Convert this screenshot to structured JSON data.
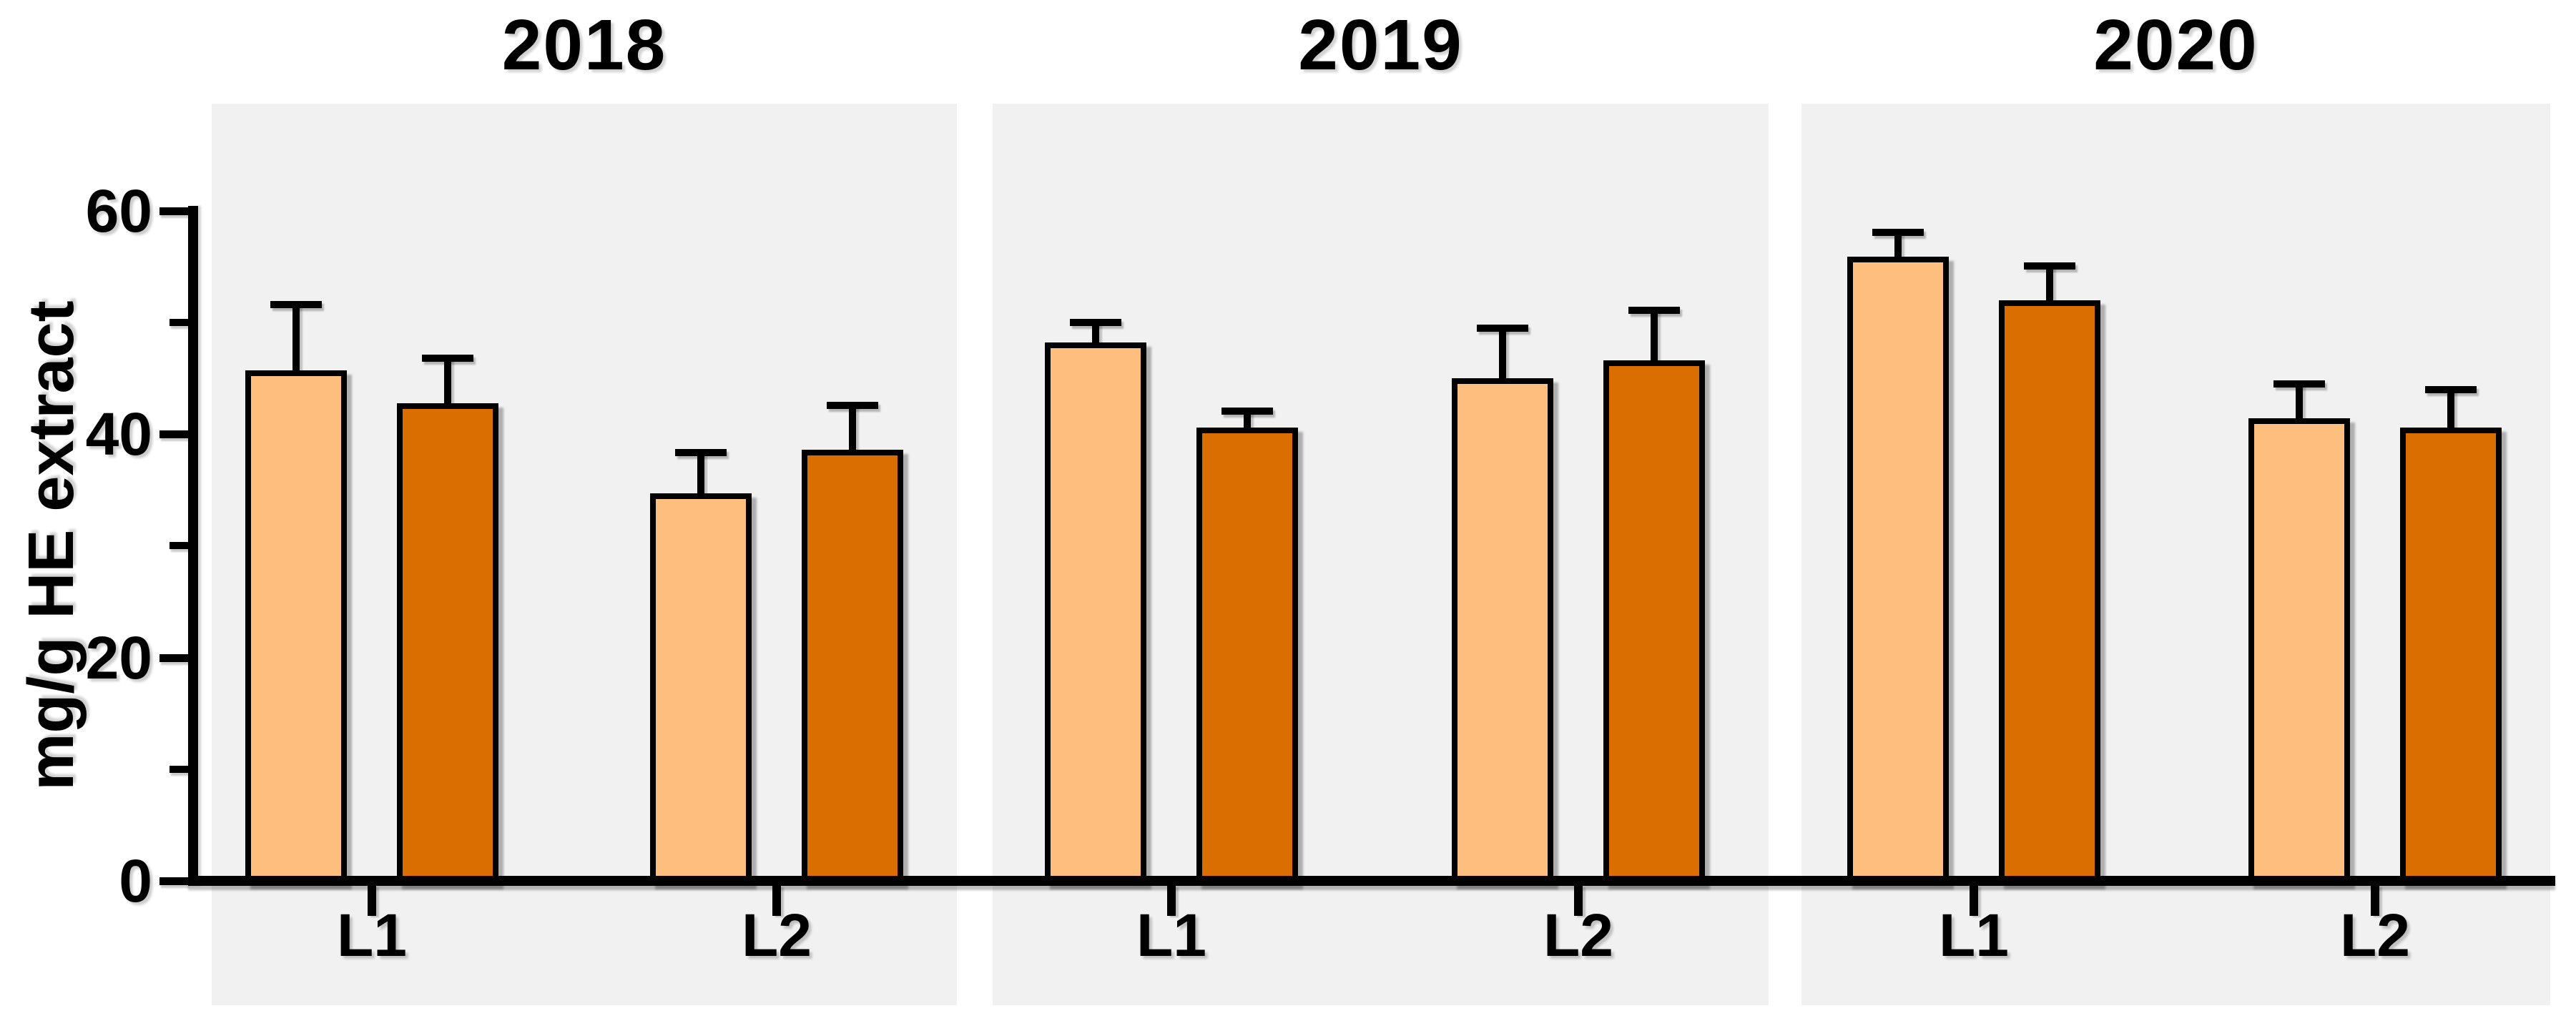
{
  "figure": {
    "ylabel": "mg/g HE extract",
    "background_color": "#ffffff",
    "panel_background_color": "#f1f1f1",
    "axis_color": "#000000",
    "y_axis": {
      "min": 0,
      "max": 60,
      "major_ticks": [
        0,
        20,
        40,
        60
      ],
      "minor_ticks": [
        10,
        30,
        50
      ]
    },
    "series_colors": {
      "series_1_light_orange": "#FDBE7E",
      "series_2_dark_orange": "#DB6E00"
    }
  },
  "chart_data": [
    {
      "type": "bar",
      "title": "2018",
      "categories": [
        "L1",
        "L2"
      ],
      "series": [
        {
          "name": "light-orange",
          "color": "#FDBE7E",
          "values": [
            45.7,
            34.7
          ],
          "errors": [
            6.2,
            4.0
          ]
        },
        {
          "name": "dark-orange",
          "color": "#DB6E00",
          "values": [
            42.8,
            38.6
          ],
          "errors": [
            4.3,
            4.3
          ]
        }
      ],
      "xlabel": "",
      "ylabel": "mg/g HE extract",
      "ylim": [
        0,
        60
      ],
      "grid": false,
      "legend": "none",
      "error_bars": "upper only, capped"
    },
    {
      "type": "bar",
      "title": "2019",
      "categories": [
        "L1",
        "L2"
      ],
      "series": [
        {
          "name": "light-orange",
          "color": "#FDBE7E",
          "values": [
            48.2,
            45.0
          ],
          "errors": [
            2.1,
            4.8
          ]
        },
        {
          "name": "dark-orange",
          "color": "#DB6E00",
          "values": [
            40.6,
            46.6
          ],
          "errors": [
            1.8,
            4.8
          ]
        }
      ],
      "xlabel": "",
      "ylabel": "mg/g HE extract",
      "ylim": [
        0,
        60
      ],
      "grid": false,
      "legend": "none",
      "error_bars": "upper only, capped"
    },
    {
      "type": "bar",
      "title": "2020",
      "categories": [
        "L1",
        "L2"
      ],
      "series": [
        {
          "name": "light-orange",
          "color": "#FDBE7E",
          "values": [
            55.9,
            41.4
          ],
          "errors": [
            2.5,
            3.4
          ]
        },
        {
          "name": "dark-orange",
          "color": "#DB6E00",
          "values": [
            52.0,
            40.6
          ],
          "errors": [
            3.4,
            3.7
          ]
        }
      ],
      "xlabel": "",
      "ylabel": "mg/g HE extract",
      "ylim": [
        0,
        60
      ],
      "grid": false,
      "legend": "none",
      "error_bars": "upper only, capped"
    }
  ]
}
